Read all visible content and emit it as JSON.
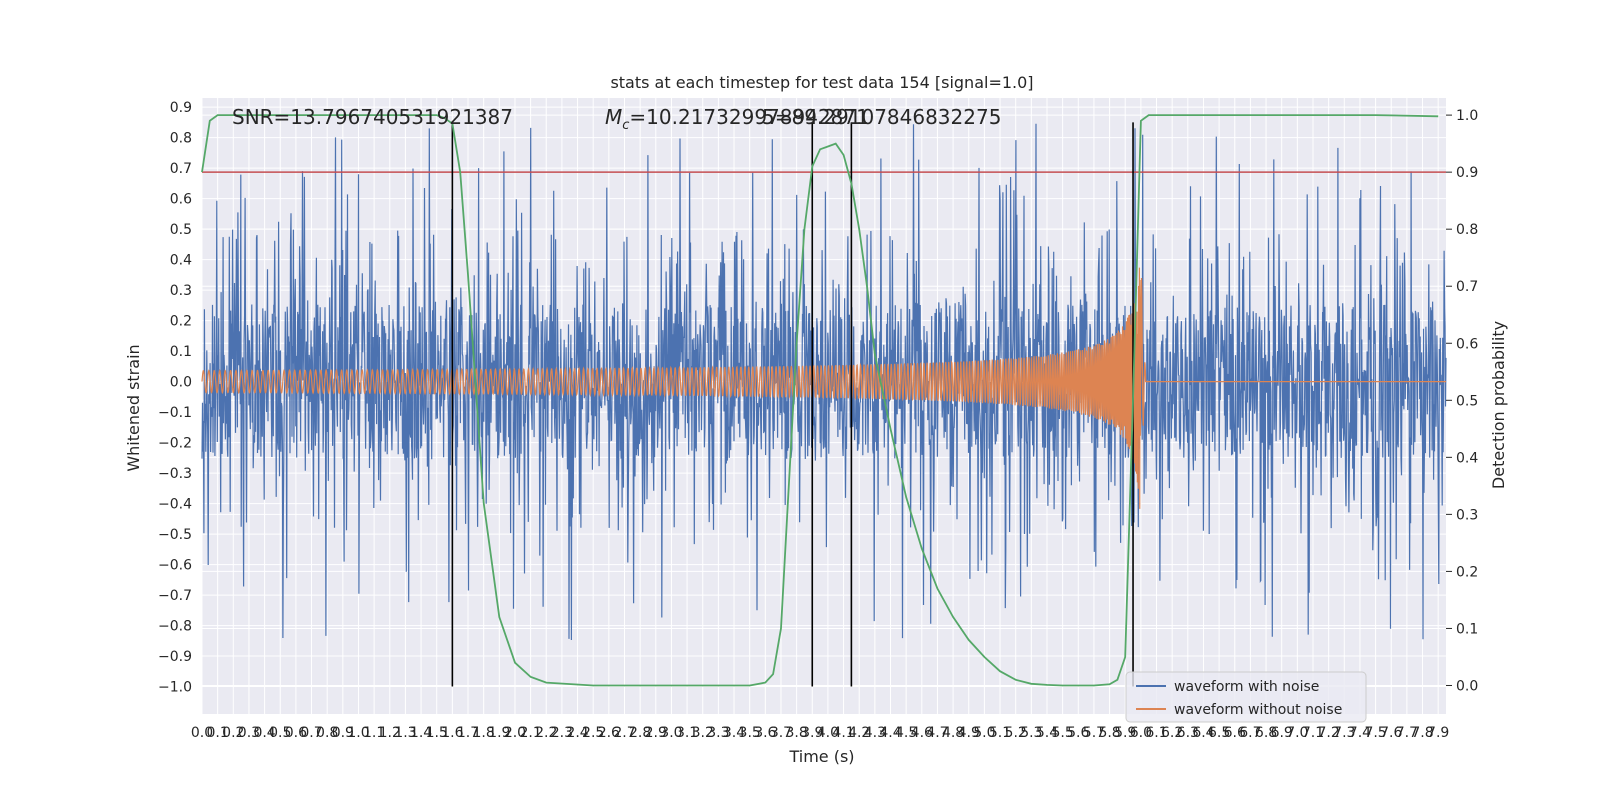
{
  "chart_data": {
    "type": "line",
    "title": "stats at each timestep for test data 154 [signal=1.0]",
    "xlabel": "Time (s)",
    "ylabel": "Whitened strain",
    "ylabel_right": "Detection probability",
    "xlim": [
      0.0,
      7.95
    ],
    "ylim": [
      -1.09,
      0.93
    ],
    "ylim_right": [
      -0.05,
      1.03
    ],
    "x_ticks": [
      0.0,
      0.1,
      0.2,
      0.3,
      0.4,
      0.5,
      0.6,
      0.7,
      0.8,
      0.9,
      1.0,
      1.1,
      1.2,
      1.3,
      1.4,
      1.5,
      1.6,
      1.7,
      1.8,
      1.9,
      2.0,
      2.1,
      2.2,
      2.3,
      2.4,
      2.5,
      2.6,
      2.7,
      2.8,
      2.9,
      3.0,
      3.1,
      3.2,
      3.3,
      3.4,
      3.5,
      3.6,
      3.7,
      3.8,
      3.9,
      4.0,
      4.1,
      4.2,
      4.3,
      4.4,
      4.5,
      4.6,
      4.7,
      4.8,
      4.9,
      5.0,
      5.1,
      5.2,
      5.3,
      5.4,
      5.5,
      5.6,
      5.7,
      5.8,
      5.9,
      6.0,
      6.1,
      6.2,
      6.3,
      6.4,
      6.5,
      6.6,
      6.7,
      6.8,
      6.9,
      7.0,
      7.1,
      7.2,
      7.3,
      7.4,
      7.5,
      7.6,
      7.7,
      7.8,
      7.9
    ],
    "x_tick_labels": [
      "0.0",
      "0.1",
      "0.2",
      "0.3",
      "0.4",
      "0.5",
      "0.6",
      "0.7",
      "0.8",
      "0.9",
      "1.0",
      "1.1",
      "1.2",
      "1.3",
      "1.4",
      "1.5",
      "1.6",
      "1.7",
      "1.8",
      "1.9",
      "2.0",
      "2.1",
      "2.2",
      "2.3",
      "2.4",
      "2.5",
      "2.6",
      "2.7",
      "2.8",
      "2.9",
      "3.0",
      "3.1",
      "3.2",
      "3.3",
      "3.4",
      "3.5",
      "3.6",
      "3.7",
      "3.8",
      "3.9",
      "4.0",
      "4.1",
      "4.2",
      "4.3",
      "4.4",
      "4.5",
      "4.6",
      "4.7",
      "4.8",
      "4.9",
      "5.0",
      "5.1",
      "5.2",
      "5.3",
      "5.4",
      "5.5",
      "5.6",
      "5.7",
      "5.8",
      "5.9",
      "6.0",
      "6.1",
      "6.2",
      "6.3",
      "6.4",
      "6.5",
      "6.6",
      "6.7",
      "6.8",
      "6.9",
      "7.0",
      "7.1",
      "7.2",
      "7.3",
      "7.4",
      "7.5",
      "7.6",
      "7.7",
      "7.8",
      "7.9"
    ],
    "y_ticks": [
      0.9,
      0.8,
      0.7,
      0.6,
      0.5,
      0.4,
      0.3,
      0.2,
      0.1,
      0.0,
      -0.1,
      -0.2,
      -0.3,
      -0.4,
      -0.5,
      -0.6,
      -0.7,
      -0.8,
      -0.9,
      -1.0
    ],
    "y_tick_labels": [
      "0.9",
      "0.8",
      "0.7",
      "0.6",
      "0.5",
      "0.4",
      "0.3",
      "0.2",
      "0.1",
      "0.0",
      "−0.1",
      "−0.2",
      "−0.3",
      "−0.4",
      "−0.5",
      "−0.6",
      "−0.7",
      "−0.8",
      "−0.9",
      "−1.0"
    ],
    "y_ticks_right": [
      1.0,
      0.9,
      0.8,
      0.7,
      0.6,
      0.5,
      0.4,
      0.3,
      0.2,
      0.1,
      0.0
    ],
    "y_tick_labels_right": [
      "1.0",
      "0.9",
      "0.8",
      "0.7",
      "0.6",
      "0.5",
      "0.4",
      "0.3",
      "0.2",
      "0.1",
      "0.0"
    ],
    "annotations": {
      "snr": "SNR=13.796740531921387",
      "mc_prefix": "M",
      "mc_sub": "c",
      "mc_value": "=10.217329978942871",
      "mc_overlap": "5=89.29107846832275"
    },
    "threshold": {
      "axis": "right",
      "value": 0.9,
      "color": "#c44e52"
    },
    "vlines": {
      "x": [
        1.6,
        3.9,
        4.15,
        5.95
      ],
      "ylim": [
        -1.0,
        0.85
      ],
      "color": "#000000"
    },
    "series": [
      {
        "name": "waveform with noise",
        "color": "#4c72b0",
        "axis": "left",
        "style": "noise",
        "envelope": 0.22,
        "outlier_range": [
          0.45,
          0.85
        ]
      },
      {
        "name": "waveform without noise",
        "color": "#dd8452",
        "axis": "left",
        "style": "chirp",
        "merger_time": 6.0,
        "amplitude_start": 0.015,
        "amplitude_peak": 0.5
      },
      {
        "name": "detection probability",
        "color": "#55a868",
        "axis": "right",
        "style": "line",
        "x": [
          0.0,
          0.05,
          0.1,
          0.2,
          0.5,
          1.0,
          1.5,
          1.55,
          1.6,
          1.65,
          1.7,
          1.8,
          1.9,
          2.0,
          2.1,
          2.2,
          2.5,
          3.0,
          3.5,
          3.6,
          3.65,
          3.7,
          3.75,
          3.8,
          3.85,
          3.9,
          3.95,
          4.0,
          4.05,
          4.1,
          4.15,
          4.2,
          4.25,
          4.3,
          4.4,
          4.5,
          4.6,
          4.7,
          4.8,
          4.9,
          5.0,
          5.1,
          5.2,
          5.3,
          5.4,
          5.5,
          5.6,
          5.7,
          5.8,
          5.85,
          5.9,
          5.95,
          6.0,
          6.05,
          6.1,
          6.2,
          6.5,
          7.0,
          7.5,
          7.9
        ],
        "y": [
          0.9,
          0.99,
          1.0,
          1.0,
          1.0,
          1.0,
          1.0,
          0.995,
          0.985,
          0.9,
          0.72,
          0.32,
          0.12,
          0.04,
          0.015,
          0.005,
          0.0,
          0.0,
          0.0,
          0.005,
          0.02,
          0.1,
          0.35,
          0.6,
          0.8,
          0.91,
          0.94,
          0.945,
          0.95,
          0.93,
          0.88,
          0.8,
          0.7,
          0.58,
          0.45,
          0.33,
          0.24,
          0.17,
          0.12,
          0.08,
          0.05,
          0.025,
          0.01,
          0.003,
          0.001,
          0.0,
          0.0,
          0.0,
          0.002,
          0.01,
          0.05,
          0.5,
          0.99,
          1.0,
          1.0,
          1.0,
          1.0,
          1.0,
          1.0,
          0.998
        ]
      }
    ],
    "legend": {
      "position": "lower-right",
      "entries": [
        "waveform with noise",
        "waveform without noise"
      ]
    }
  }
}
